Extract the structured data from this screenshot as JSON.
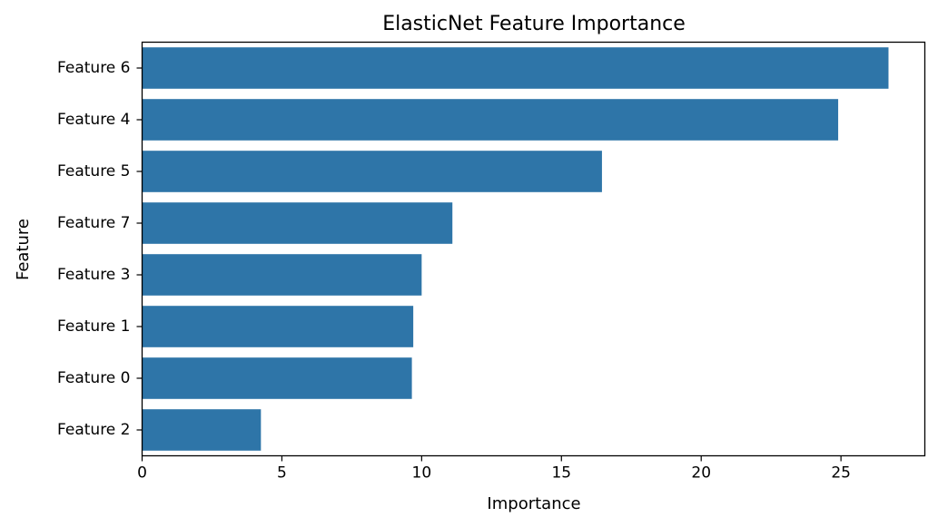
{
  "chart_data": {
    "type": "bar",
    "orientation": "horizontal",
    "title": "ElasticNet Feature Importance",
    "xlabel": "Importance",
    "ylabel": "Feature",
    "categories": [
      "Feature 6",
      "Feature 4",
      "Feature 5",
      "Feature 7",
      "Feature 3",
      "Feature 1",
      "Feature 0",
      "Feature 2"
    ],
    "values": [
      26.7,
      24.9,
      16.45,
      11.1,
      10.0,
      9.7,
      9.65,
      4.25
    ],
    "xlim": [
      0,
      28
    ],
    "xticks": [
      0,
      5,
      10,
      15,
      20,
      25
    ],
    "xtick_labels": [
      "0",
      "5",
      "10",
      "15",
      "20",
      "25"
    ],
    "bar_color": "#2e75a8",
    "grid": false
  }
}
